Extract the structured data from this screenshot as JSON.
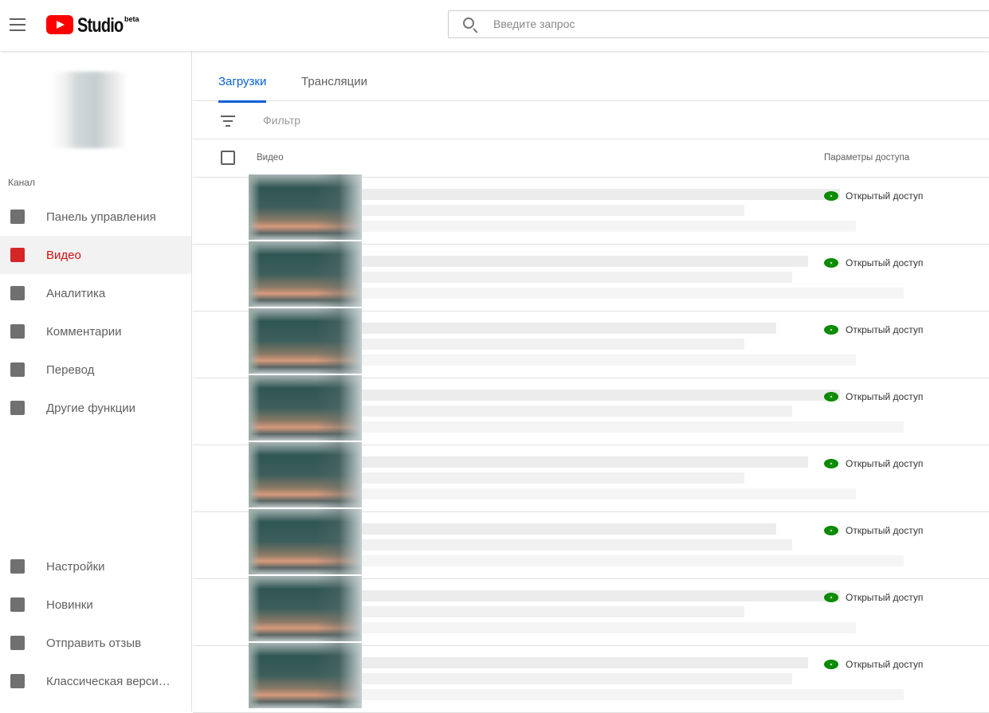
{
  "header": {
    "logo_text": "Studio",
    "logo_badge": "beta",
    "search_placeholder": "Введите запрос"
  },
  "sidebar": {
    "section": "Канал",
    "items": [
      {
        "label": "Панель управления",
        "icon": "dashboard-icon"
      },
      {
        "label": "Видео",
        "icon": "video-icon",
        "active": true
      },
      {
        "label": "Аналитика",
        "icon": "analytics-icon"
      },
      {
        "label": "Комментарии",
        "icon": "comments-icon"
      },
      {
        "label": "Перевод",
        "icon": "translate-icon"
      },
      {
        "label": "Другие функции",
        "icon": "other-features-icon"
      }
    ],
    "bottom_items": [
      {
        "label": "Настройки",
        "icon": "gear-icon"
      },
      {
        "label": "Новинки",
        "icon": "whats-new-icon"
      },
      {
        "label": "Отправить отзыв",
        "icon": "feedback-icon"
      },
      {
        "label": "Классическая верси…",
        "icon": "classic-icon"
      }
    ]
  },
  "main": {
    "tabs": [
      {
        "label": "Загрузки",
        "active": true
      },
      {
        "label": "Трансляции"
      }
    ],
    "filter_placeholder": "Фильтр",
    "columns": {
      "video": "Видео",
      "access": "Параметры доступа"
    },
    "rows": [
      {
        "access": "Открытый доступ"
      },
      {
        "access": "Открытый доступ"
      },
      {
        "access": "Открытый доступ"
      },
      {
        "access": "Открытый доступ"
      },
      {
        "access": "Открытый доступ"
      },
      {
        "access": "Открытый доступ"
      },
      {
        "access": "Открытый доступ"
      },
      {
        "access": "Открытый доступ"
      }
    ]
  },
  "colors": {
    "accent": "#065fd4",
    "active_nav": "#d20f0f",
    "public": "#0b8a00"
  }
}
